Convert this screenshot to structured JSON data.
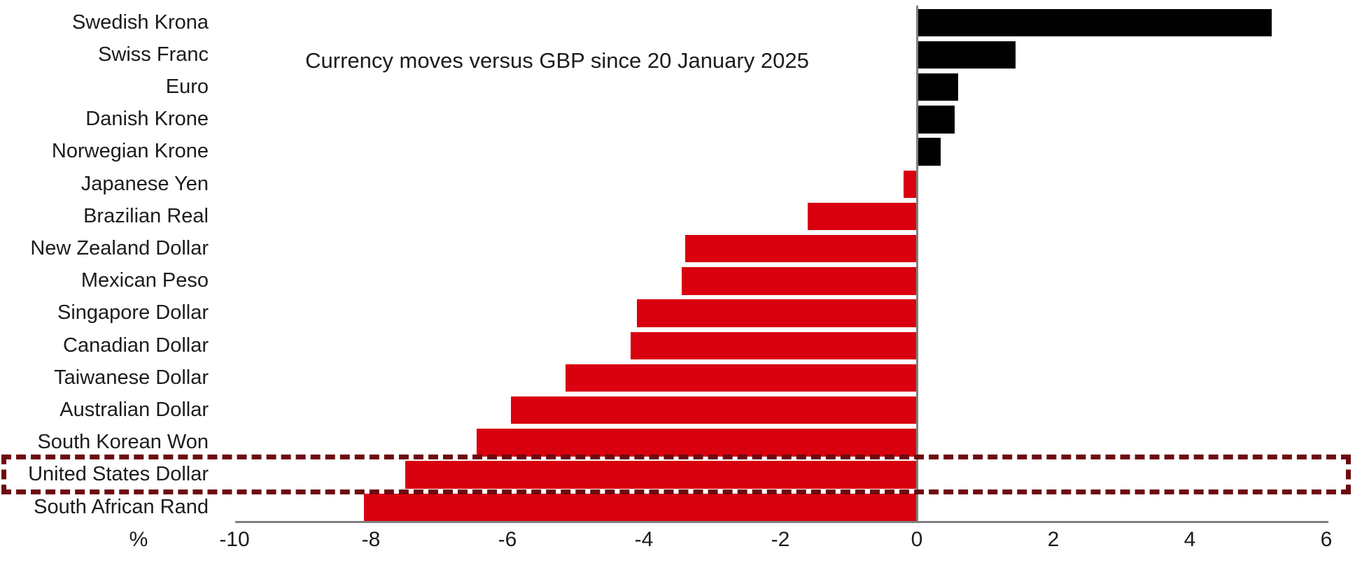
{
  "chart": {
    "title": "Currency moves versus GBP since 20 January 2025",
    "x_axis": {
      "unit_label": "%",
      "min": -10,
      "max": 6,
      "tick_step": 2
    },
    "colors": {
      "positive_bar": "#000000",
      "negative_bar": "#d9000f",
      "axis_line": "#7f7f7f",
      "text": "#1c1c1c",
      "highlight_border": "#6e0a0f"
    },
    "highlight": {
      "category": "United States Dollar",
      "style": "dashed-rectangle"
    }
  },
  "chart_data": {
    "type": "bar",
    "orientation": "horizontal",
    "title": "Currency moves versus GBP since 20 January 2025",
    "xlabel": "%",
    "ylabel": "",
    "xlim": [
      -10,
      6
    ],
    "x_ticks": [
      -10,
      -8,
      -6,
      -4,
      -2,
      0,
      2,
      4,
      6
    ],
    "grid": false,
    "legend": false,
    "categories": [
      "Swedish Krona",
      "Swiss Franc",
      "Euro",
      "Danish Krone",
      "Norwegian Krone",
      "Japanese Yen",
      "Brazilian Real",
      "New Zealand Dollar",
      "Mexican Peso",
      "Singapore Dollar",
      "Canadian Dollar",
      "Taiwanese Dollar",
      "Australian Dollar",
      "South Korean Won",
      "United States Dollar",
      "South African Rand"
    ],
    "values": [
      5.2,
      1.45,
      0.6,
      0.55,
      0.35,
      -0.2,
      -1.6,
      -3.4,
      -3.45,
      -4.1,
      -4.2,
      -5.15,
      -5.95,
      -6.45,
      -7.5,
      -8.1
    ],
    "value_color_rule": "positive values black, negative values red",
    "highlighted_category": "United States Dollar"
  }
}
